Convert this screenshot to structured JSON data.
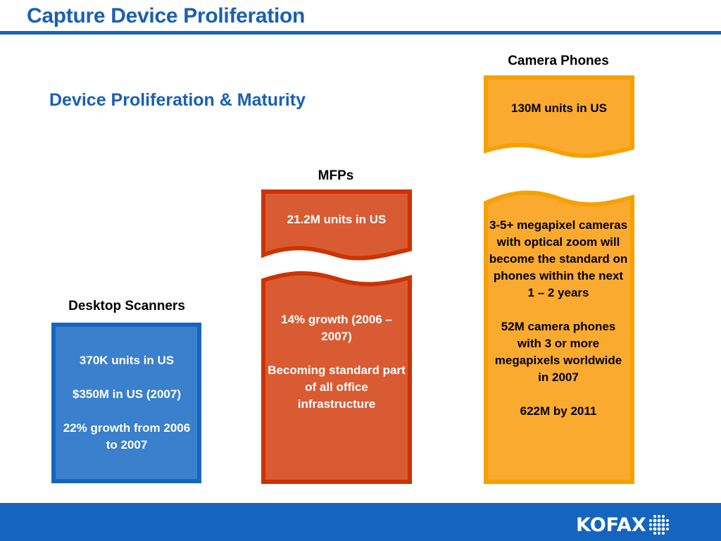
{
  "slide": {
    "title": "Capture Device Proliferation",
    "subtitle": "Device Proliferation & Maturity"
  },
  "columns": {
    "scanners": {
      "label": "Desktop Scanners",
      "text": [
        "370K units in US",
        "$350M in US (2007)",
        "22% growth from 2006 to 2007"
      ],
      "fill": "#3a80cc",
      "border": "#1565c0"
    },
    "mfps": {
      "label": "MFPs",
      "top_text": "21.2M units in US",
      "bottom_text": [
        "14% growth (2006 – 2007)",
        "Becoming standard part of all office infrastructure"
      ],
      "fill": "#d95b33",
      "border": "#cc3300"
    },
    "phones": {
      "label": "Camera Phones",
      "top_text": "130M units in US",
      "bottom_text": [
        "3-5+ megapixel cameras with optical zoom will become the standard on phones within the next 1 – 2 years",
        "52M camera phones with 3 or more megapixels worldwide in 2007",
        "622M by 2011"
      ],
      "fill": "#fbaa30",
      "border": "#f7a000"
    }
  },
  "footer": {
    "logo_text": "KOFAX",
    "color": "#1565c0"
  }
}
